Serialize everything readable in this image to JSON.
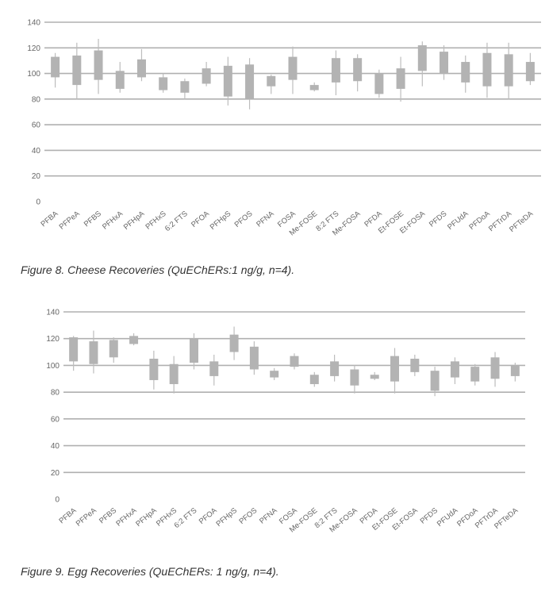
{
  "chart_data": [
    {
      "type": "box",
      "title": "",
      "xlabel": "",
      "ylabel": "",
      "ylim": [
        0,
        140
      ],
      "yticks": [
        0,
        20,
        40,
        60,
        80,
        100,
        120,
        140
      ],
      "grid": true,
      "categories": [
        "PFBA",
        "PFPeA",
        "PFBS",
        "PFHxA",
        "PFHpA",
        "PFHxS",
        "6:2 FTS",
        "PFOA",
        "PFHpS",
        "PFOS",
        "PFNA",
        "FOSA",
        "Me-FOSE",
        "8:2 FTS",
        "Me-FOSA",
        "PFDA",
        "Et-FOSE",
        "Et-FOSA",
        "PFDS",
        "PFUdA",
        "PFDoA",
        "PFTrDA",
        "PFTeDA"
      ],
      "series": [
        {
          "box_low": [
            97,
            91,
            95,
            88,
            97,
            87,
            85,
            92,
            82,
            80,
            90,
            95,
            87,
            93,
            94,
            84,
            88,
            102,
            100,
            93,
            90,
            90,
            94
          ],
          "box_high": [
            113,
            114,
            118,
            102,
            111,
            97,
            94,
            104,
            106,
            107,
            98,
            113,
            91,
            112,
            112,
            100,
            104,
            122,
            117,
            109,
            116,
            115,
            109
          ],
          "whisker_low": [
            89,
            80,
            84,
            85,
            94,
            85,
            80,
            90,
            75,
            72,
            84,
            84,
            86,
            83,
            86,
            81,
            78,
            90,
            95,
            85,
            81,
            80,
            91
          ],
          "whisker_high": [
            116,
            124,
            127,
            109,
            119,
            100,
            96,
            109,
            113,
            112,
            99,
            121,
            93,
            118,
            115,
            103,
            113,
            125,
            122,
            114,
            124,
            124,
            116
          ]
        }
      ]
    },
    {
      "type": "box",
      "title": "",
      "xlabel": "",
      "ylabel": "",
      "ylim": [
        0,
        140
      ],
      "yticks": [
        0,
        20,
        40,
        60,
        80,
        100,
        120,
        140
      ],
      "grid": true,
      "categories": [
        "PFBA",
        "PFPeA",
        "PFBS",
        "PFHxA",
        "PFHpA",
        "PFHxS",
        "6:2 FTS",
        "PFOA",
        "PFHpS",
        "PFOS",
        "PFNA",
        "FOSA",
        "Me-FOSE",
        "8:2 FTS",
        "Me-FOSA",
        "PFDA",
        "Et-FOSE",
        "Et-FOSA",
        "PFDS",
        "PFUdA",
        "PFDoA",
        "PFTrDA",
        "PFTeDA"
      ],
      "series": [
        {
          "box_low": [
            103,
            101,
            106,
            116,
            89,
            86,
            102,
            92,
            110,
            97,
            91,
            99,
            86,
            92,
            85,
            90,
            88,
            95,
            81,
            91,
            88,
            90,
            92
          ],
          "box_high": [
            121,
            118,
            119,
            122,
            105,
            101,
            120,
            103,
            123,
            114,
            96,
            107,
            93,
            103,
            97,
            93,
            107,
            105,
            96,
            103,
            99,
            106,
            100
          ],
          "whisker_low": [
            96,
            94,
            102,
            115,
            82,
            79,
            97,
            85,
            104,
            93,
            89,
            97,
            84,
            88,
            79,
            89,
            79,
            92,
            77,
            86,
            85,
            84,
            88
          ],
          "whisker_high": [
            122,
            126,
            121,
            124,
            111,
            107,
            124,
            108,
            129,
            118,
            98,
            109,
            95,
            108,
            100,
            95,
            113,
            108,
            99,
            106,
            101,
            110,
            102
          ]
        }
      ]
    }
  ],
  "captions": {
    "fig8": "Figure 8. Cheese Recoveries (QuEChERs:1 ng/g, n=4).",
    "fig9": "Figure 9. Egg Recoveries (QuEChERs: 1 ng/g, n=4)."
  },
  "colors": {
    "box": "#b3b3b3",
    "whisker": "#bdbdbd",
    "grid_major": "#b0b0b0",
    "axis_text": "#666666"
  }
}
